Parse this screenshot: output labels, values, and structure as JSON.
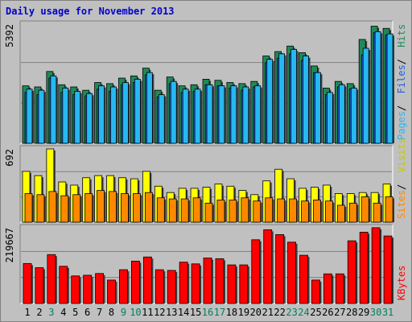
{
  "title": "Daily usage for November 2013",
  "colors": {
    "hits": "#1e8a59",
    "files": "#1f5fe0",
    "pages": "#27b8f0",
    "visits": "#ffff00",
    "sites": "#ff8800",
    "kbytes": "#ff0000",
    "panel_bg": "#c0c0c0",
    "weekend_label": "#00805f",
    "weekday_label": "#000000"
  },
  "chart_data": [
    {
      "type": "bar",
      "title": "Daily usage for November 2013",
      "categories": [
        "1",
        "2",
        "3",
        "4",
        "5",
        "6",
        "7",
        "8",
        "9",
        "10",
        "11",
        "12",
        "13",
        "14",
        "15",
        "16",
        "17",
        "18",
        "19",
        "20",
        "21",
        "22",
        "23",
        "24",
        "25",
        "26",
        "27",
        "28",
        "29",
        "30",
        "31"
      ],
      "weekend_days": [
        "3",
        "9",
        "10",
        "16",
        "17",
        "23",
        "24",
        "30",
        "31"
      ],
      "ylabel_max": "5392",
      "ylim": [
        0,
        5392
      ],
      "legend": [
        "Pages",
        "Files",
        "Hits"
      ],
      "series": [
        {
          "name": "Hits",
          "values": [
            2600,
            2550,
            3250,
            2650,
            2550,
            2400,
            2750,
            2700,
            2950,
            3050,
            3400,
            2400,
            3000,
            2600,
            2650,
            2900,
            2850,
            2750,
            2700,
            2800,
            3950,
            4150,
            4400,
            4100,
            3500,
            2500,
            2800,
            2700,
            4700,
            5300,
            5200
          ]
        },
        {
          "name": "Files",
          "values": [
            2300,
            2200,
            2950,
            2300,
            2200,
            2150,
            2450,
            2350,
            2650,
            2750,
            3100,
            2100,
            2700,
            2300,
            2350,
            2650,
            2600,
            2500,
            2400,
            2550,
            3650,
            3850,
            4050,
            3750,
            3200,
            2200,
            2550,
            2450,
            4000,
            5000,
            4900
          ]
        },
        {
          "name": "Pages",
          "values": [
            2450,
            2400,
            3050,
            2500,
            2350,
            2250,
            2600,
            2550,
            2750,
            2900,
            3200,
            2200,
            2800,
            2450,
            2450,
            2650,
            2600,
            2600,
            2550,
            2600,
            3800,
            4050,
            4250,
            3950,
            3200,
            2300,
            2650,
            2500,
            4300,
            5050,
            4950
          ]
        }
      ]
    },
    {
      "type": "bar",
      "categories": [
        "1",
        "2",
        "3",
        "4",
        "5",
        "6",
        "7",
        "8",
        "9",
        "10",
        "11",
        "12",
        "13",
        "14",
        "15",
        "16",
        "17",
        "18",
        "19",
        "20",
        "21",
        "22",
        "23",
        "24",
        "25",
        "26",
        "27",
        "28",
        "29",
        "30",
        "31"
      ],
      "ylabel_max": "692",
      "ylim": [
        0,
        692
      ],
      "legend": [
        "Sites",
        "Visits"
      ],
      "series": [
        {
          "name": "Visits",
          "values": [
            480,
            440,
            692,
            380,
            350,
            420,
            440,
            440,
            420,
            410,
            480,
            340,
            280,
            320,
            320,
            330,
            360,
            340,
            300,
            260,
            390,
            500,
            410,
            320,
            330,
            350,
            270,
            270,
            280,
            280,
            360
          ]
        },
        {
          "name": "Sites",
          "values": [
            270,
            260,
            290,
            250,
            260,
            270,
            300,
            290,
            270,
            270,
            280,
            230,
            220,
            220,
            230,
            180,
            210,
            210,
            230,
            200,
            230,
            220,
            220,
            200,
            210,
            200,
            160,
            180,
            240,
            180,
            240
          ]
        }
      ]
    },
    {
      "type": "bar",
      "categories": [
        "1",
        "2",
        "3",
        "4",
        "5",
        "6",
        "7",
        "8",
        "9",
        "10",
        "11",
        "12",
        "13",
        "14",
        "15",
        "16",
        "17",
        "18",
        "19",
        "20",
        "21",
        "22",
        "23",
        "24",
        "25",
        "26",
        "27",
        "28",
        "29",
        "30",
        "31"
      ],
      "ylabel_max": "219667",
      "ylim": [
        0,
        219667
      ],
      "legend": [
        "KBytes"
      ],
      "series": [
        {
          "name": "KBytes",
          "values": [
            116000,
            104000,
            142000,
            108000,
            80000,
            82000,
            87000,
            68000,
            98000,
            123000,
            135000,
            98000,
            96000,
            120000,
            115000,
            132000,
            130000,
            112000,
            112000,
            185000,
            214000,
            200000,
            178000,
            140000,
            68000,
            86000,
            86000,
            182000,
            207000,
            220000,
            196000
          ]
        }
      ]
    }
  ]
}
